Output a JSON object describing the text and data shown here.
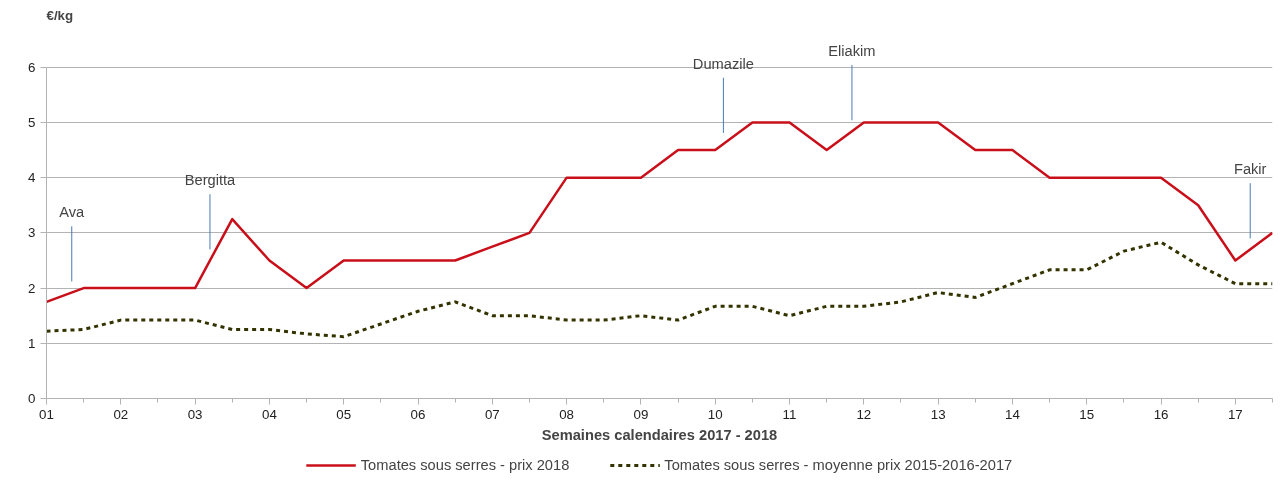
{
  "chart_data": {
    "type": "line",
    "ylabel": "€/kg",
    "xlabel": "Semaines calendaires 2017 - 2018",
    "x": [
      1,
      1.5,
      2,
      2.5,
      3,
      3.5,
      4,
      4.5,
      5,
      5.5,
      6,
      6.5,
      7,
      7.5,
      8,
      8.5,
      9,
      9.5,
      10,
      10.5,
      11,
      11.5,
      12,
      12.5,
      13,
      13.5,
      14,
      14.5,
      15,
      15.5,
      16,
      16.5,
      17,
      17.5
    ],
    "series": [
      {
        "name": "Tomates sous serres - prix 2018",
        "color": "#c9101a",
        "line_style": "solid",
        "values": [
          1.75,
          2,
          2,
          2,
          2,
          3.25,
          2.5,
          2,
          2.5,
          2.5,
          2.5,
          2.5,
          2.75,
          3,
          4,
          4,
          4,
          4.5,
          4.5,
          5,
          5,
          4.5,
          5,
          5,
          5,
          4.5,
          4.5,
          4,
          4,
          4,
          4,
          3.5,
          2.5,
          3
        ]
      },
      {
        "name": "Tomates sous serres - moyenne prix 2015-2016-2017",
        "color": "#333300",
        "line_style": "dashed",
        "values": [
          1.22,
          1.25,
          1.42,
          1.42,
          1.42,
          1.25,
          1.25,
          1.17,
          1.12,
          1.35,
          1.58,
          1.75,
          1.5,
          1.5,
          1.42,
          1.42,
          1.5,
          1.42,
          1.67,
          1.67,
          1.5,
          1.67,
          1.67,
          1.75,
          1.92,
          1.83,
          2.08,
          2.33,
          2.33,
          2.67,
          2.83,
          2.42,
          2.08,
          2.08
        ]
      }
    ],
    "xlim": [
      1,
      17.5
    ],
    "xticks": [
      {
        "value": 1,
        "label": "01"
      },
      {
        "value": 2,
        "label": "02"
      },
      {
        "value": 3,
        "label": "03"
      },
      {
        "value": 4,
        "label": "04"
      },
      {
        "value": 5,
        "label": "05"
      },
      {
        "value": 6,
        "label": "06"
      },
      {
        "value": 7,
        "label": "07"
      },
      {
        "value": 8,
        "label": "08"
      },
      {
        "value": 9,
        "label": "09"
      },
      10,
      11,
      12,
      13,
      14,
      15,
      16,
      17
    ],
    "ylim": [
      0,
      6
    ],
    "yticks": [
      0,
      1,
      2,
      3,
      4,
      5,
      6
    ],
    "grid": "y",
    "legend": "bottom",
    "marker": "none",
    "ref_lines": [
      {
        "axis": "x",
        "value": 1.34,
        "label": "Ava",
        "color": "#4a7ab5"
      },
      {
        "axis": "x",
        "value": 3.2,
        "label": "Bergitta",
        "color": "#4a7ab5"
      },
      {
        "axis": "x",
        "value": 10.11,
        "label": "Dumazile",
        "color": "#4a7ab5"
      },
      {
        "axis": "x",
        "value": 11.84,
        "label": "Eliakim",
        "color": "#4a7ab5"
      },
      {
        "axis": "x",
        "value": 17.2,
        "label": "Fakir",
        "color": "#4a7ab5"
      }
    ]
  }
}
